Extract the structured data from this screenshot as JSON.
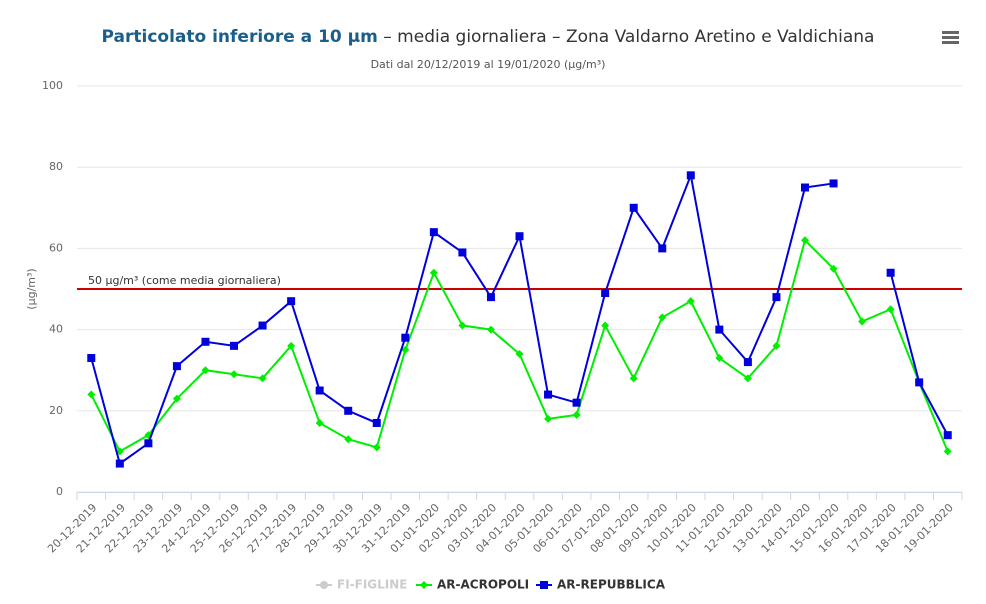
{
  "chart_data": {
    "type": "line",
    "title": [
      "Particolato inferiore a 10 µm",
      " – media giornaliera – Zona Valdarno Aretino e Valdichiana"
    ],
    "subtitle": "Dati dal 20/12/2019 al 19/01/2020 (µg/m³)",
    "y_label": "(µg/m³)",
    "categories": [
      "20-12-2019",
      "21-12-2019",
      "22-12-2019",
      "23-12-2019",
      "24-12-2019",
      "25-12-2019",
      "26-12-2019",
      "27-12-2019",
      "28-12-2019",
      "29-12-2019",
      "30-12-2019",
      "31-12-2019",
      "01-01-2020",
      "02-01-2020",
      "03-01-2020",
      "04-01-2020",
      "05-01-2020",
      "06-01-2020",
      "07-01-2020",
      "08-01-2020",
      "09-01-2020",
      "10-01-2020",
      "11-01-2020",
      "12-01-2020",
      "13-01-2020",
      "14-01-2020",
      "15-01-2020",
      "16-01-2020",
      "17-01-2020",
      "18-01-2020",
      "19-01-2020"
    ],
    "ylim": [
      0,
      100
    ],
    "yticks": [
      0,
      20,
      40,
      60,
      80,
      100
    ],
    "grid": true,
    "plot_line": {
      "value": 50,
      "label": "50 µg/m³ (come media giornaliera)",
      "color": "#cc0000"
    },
    "series": [
      {
        "name": "FI-FIGLINE",
        "color": "#cccccc",
        "visible": false
      },
      {
        "name": "AR-ACROPOLI",
        "color": "#00ee00",
        "marker": "diamond",
        "visible": true,
        "values": [
          24,
          10,
          14,
          23,
          30,
          29,
          28,
          36,
          17,
          13,
          11,
          35,
          54,
          41,
          40,
          34,
          18,
          19,
          41,
          28,
          43,
          47,
          33,
          28,
          36,
          62,
          55,
          42,
          45,
          27,
          10
        ]
      },
      {
        "name": "AR-REPUBBLICA",
        "color": "#0000dd",
        "marker": "square",
        "visible": true,
        "values": [
          33,
          7,
          12,
          31,
          37,
          36,
          41,
          47,
          25,
          20,
          17,
          38,
          64,
          59,
          48,
          63,
          24,
          22,
          49,
          70,
          60,
          78,
          40,
          32,
          48,
          75,
          76,
          null,
          54,
          27,
          14
        ]
      }
    ]
  }
}
